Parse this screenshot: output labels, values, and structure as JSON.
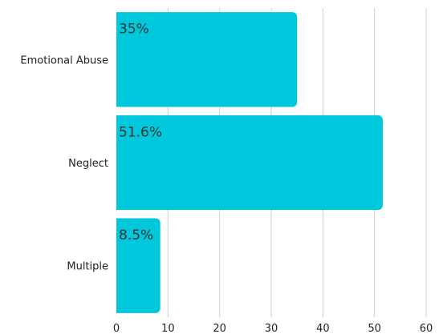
{
  "chart_data": {
    "type": "bar",
    "orientation": "horizontal",
    "categories": [
      "Emotional Abuse",
      "Neglect",
      "Multiple"
    ],
    "values": [
      35,
      51.6,
      8.5
    ],
    "data_labels": [
      "35%",
      "51.6%",
      "8.5%"
    ],
    "xticks": [
      "0",
      "10",
      "20",
      "30",
      "40",
      "50",
      "60"
    ],
    "xlim": [
      0,
      60
    ],
    "grid": true,
    "bar_color": "#00c8dc"
  }
}
